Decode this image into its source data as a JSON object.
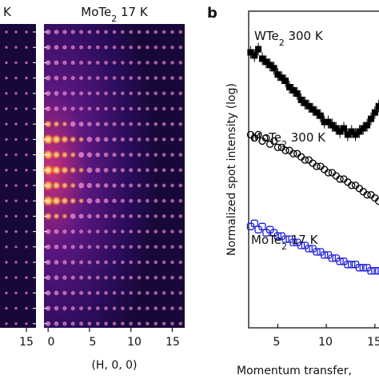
{
  "panels": {
    "left_partial": {
      "title_fragment": "K",
      "tick_labels": [
        "15"
      ]
    },
    "middle": {
      "title": "MoTe",
      "title_sub": "2",
      "title_rest": " 17 K",
      "xlabel": "(H, 0, 0)",
      "tick_labels": [
        "0",
        "5",
        "10",
        "15"
      ]
    },
    "right": {
      "panel_letter": "b",
      "ylabel": "Normalized spot intensity (log)",
      "xlabel": "Momentum transfer,",
      "tick_labels": [
        "5",
        "10",
        "15"
      ]
    }
  },
  "colors": {
    "wte2_300k": "#000000",
    "mote2_300k": "#000000",
    "mote2_17k": "#1f1fd6",
    "diffraction_bg": "#1a0a3c",
    "spot_bright": "#fff6c0"
  },
  "chart_data": [
    {
      "type": "heatmap",
      "panel": "middle",
      "title": "MoTe2 17 K",
      "xlabel": "(H, 0, 0)",
      "xlim": [
        -0.5,
        16.5
      ],
      "xticks": [
        0,
        5,
        10,
        15
      ],
      "spot_columns_h": [
        0,
        1,
        2,
        3,
        4,
        5,
        6,
        7,
        8,
        9,
        10,
        11,
        12,
        13,
        14,
        15,
        16
      ],
      "bright_rows_note": "intensity concentrated near H=0 in central rows"
    },
    {
      "type": "scatter",
      "panel": "b",
      "xlabel": "Momentum transfer,",
      "ylabel": "Normalized spot intensity (log)",
      "xlim": [
        2,
        16
      ],
      "xticks": [
        5,
        10,
        15
      ],
      "series": [
        {
          "name": "WTe2 300 K",
          "marker": "filled-square",
          "x": [
            2.2,
            2.6,
            3.0,
            3.4,
            3.8,
            4.2,
            4.6,
            5.0,
            5.4,
            5.8,
            6.2,
            6.6,
            7.0,
            7.4,
            7.8,
            8.2,
            8.6,
            9.0,
            9.4,
            9.8,
            10.2,
            10.6,
            11.0,
            11.4,
            11.8,
            12.2,
            12.6,
            13.0,
            13.4,
            13.8,
            14.2,
            14.6,
            15.0,
            15.4,
            15.8
          ],
          "y": [
            8.7,
            8.6,
            8.8,
            8.5,
            8.4,
            8.3,
            8.2,
            8.0,
            7.9,
            7.8,
            7.6,
            7.5,
            7.4,
            7.2,
            7.1,
            7.0,
            6.9,
            6.8,
            6.7,
            6.5,
            6.5,
            6.4,
            6.3,
            6.2,
            6.3,
            6.1,
            6.2,
            6.1,
            6.2,
            6.3,
            6.4,
            6.6,
            6.8,
            7.0,
            7.3
          ]
        },
        {
          "name": "MoTe2 300 K",
          "marker": "open-circle",
          "x": [
            2.2,
            2.6,
            3.0,
            3.4,
            3.8,
            4.2,
            4.6,
            5.0,
            5.4,
            5.8,
            6.2,
            6.6,
            7.0,
            7.4,
            7.8,
            8.2,
            8.6,
            9.0,
            9.4,
            9.8,
            10.2,
            10.6,
            11.0,
            11.4,
            11.8,
            12.2,
            12.6,
            13.0,
            13.4,
            13.8,
            14.2,
            14.6,
            15.0,
            15.4,
            15.8
          ],
          "y": [
            6.1,
            6.0,
            6.1,
            5.9,
            6.0,
            5.8,
            5.9,
            5.7,
            5.7,
            5.6,
            5.6,
            5.5,
            5.5,
            5.4,
            5.3,
            5.3,
            5.2,
            5.1,
            5.1,
            5.0,
            4.9,
            4.9,
            4.8,
            4.7,
            4.7,
            4.6,
            4.5,
            4.5,
            4.4,
            4.3,
            4.2,
            4.2,
            4.1,
            4.0,
            3.9
          ]
        },
        {
          "name": "MoTe2 17 K",
          "marker": "open-square",
          "x": [
            2.2,
            2.6,
            3.0,
            3.4,
            3.8,
            4.2,
            4.6,
            5.0,
            5.4,
            5.8,
            6.2,
            6.6,
            7.0,
            7.4,
            7.8,
            8.2,
            8.6,
            9.0,
            9.4,
            9.8,
            10.2,
            10.6,
            11.0,
            11.4,
            11.8,
            12.2,
            12.6,
            13.0,
            13.4,
            13.8,
            14.2,
            14.6,
            15.0,
            15.4,
            15.8
          ],
          "y": [
            3.2,
            3.3,
            3.1,
            3.2,
            3.0,
            3.1,
            3.0,
            2.9,
            2.9,
            2.8,
            2.8,
            2.7,
            2.7,
            2.6,
            2.6,
            2.5,
            2.5,
            2.4,
            2.4,
            2.3,
            2.3,
            2.2,
            2.2,
            2.1,
            2.1,
            2.0,
            2.0,
            2.0,
            1.9,
            1.9,
            1.9,
            1.8,
            1.8,
            1.8,
            1.7
          ]
        }
      ],
      "series_labels": [
        {
          "base": "WTe",
          "sub": "2",
          "rest": " 300 K"
        },
        {
          "base": "MoTe",
          "sub": "2",
          "rest": " 300 K"
        },
        {
          "base": "MoTe",
          "sub": "2",
          "rest": " 17 K"
        }
      ]
    }
  ]
}
